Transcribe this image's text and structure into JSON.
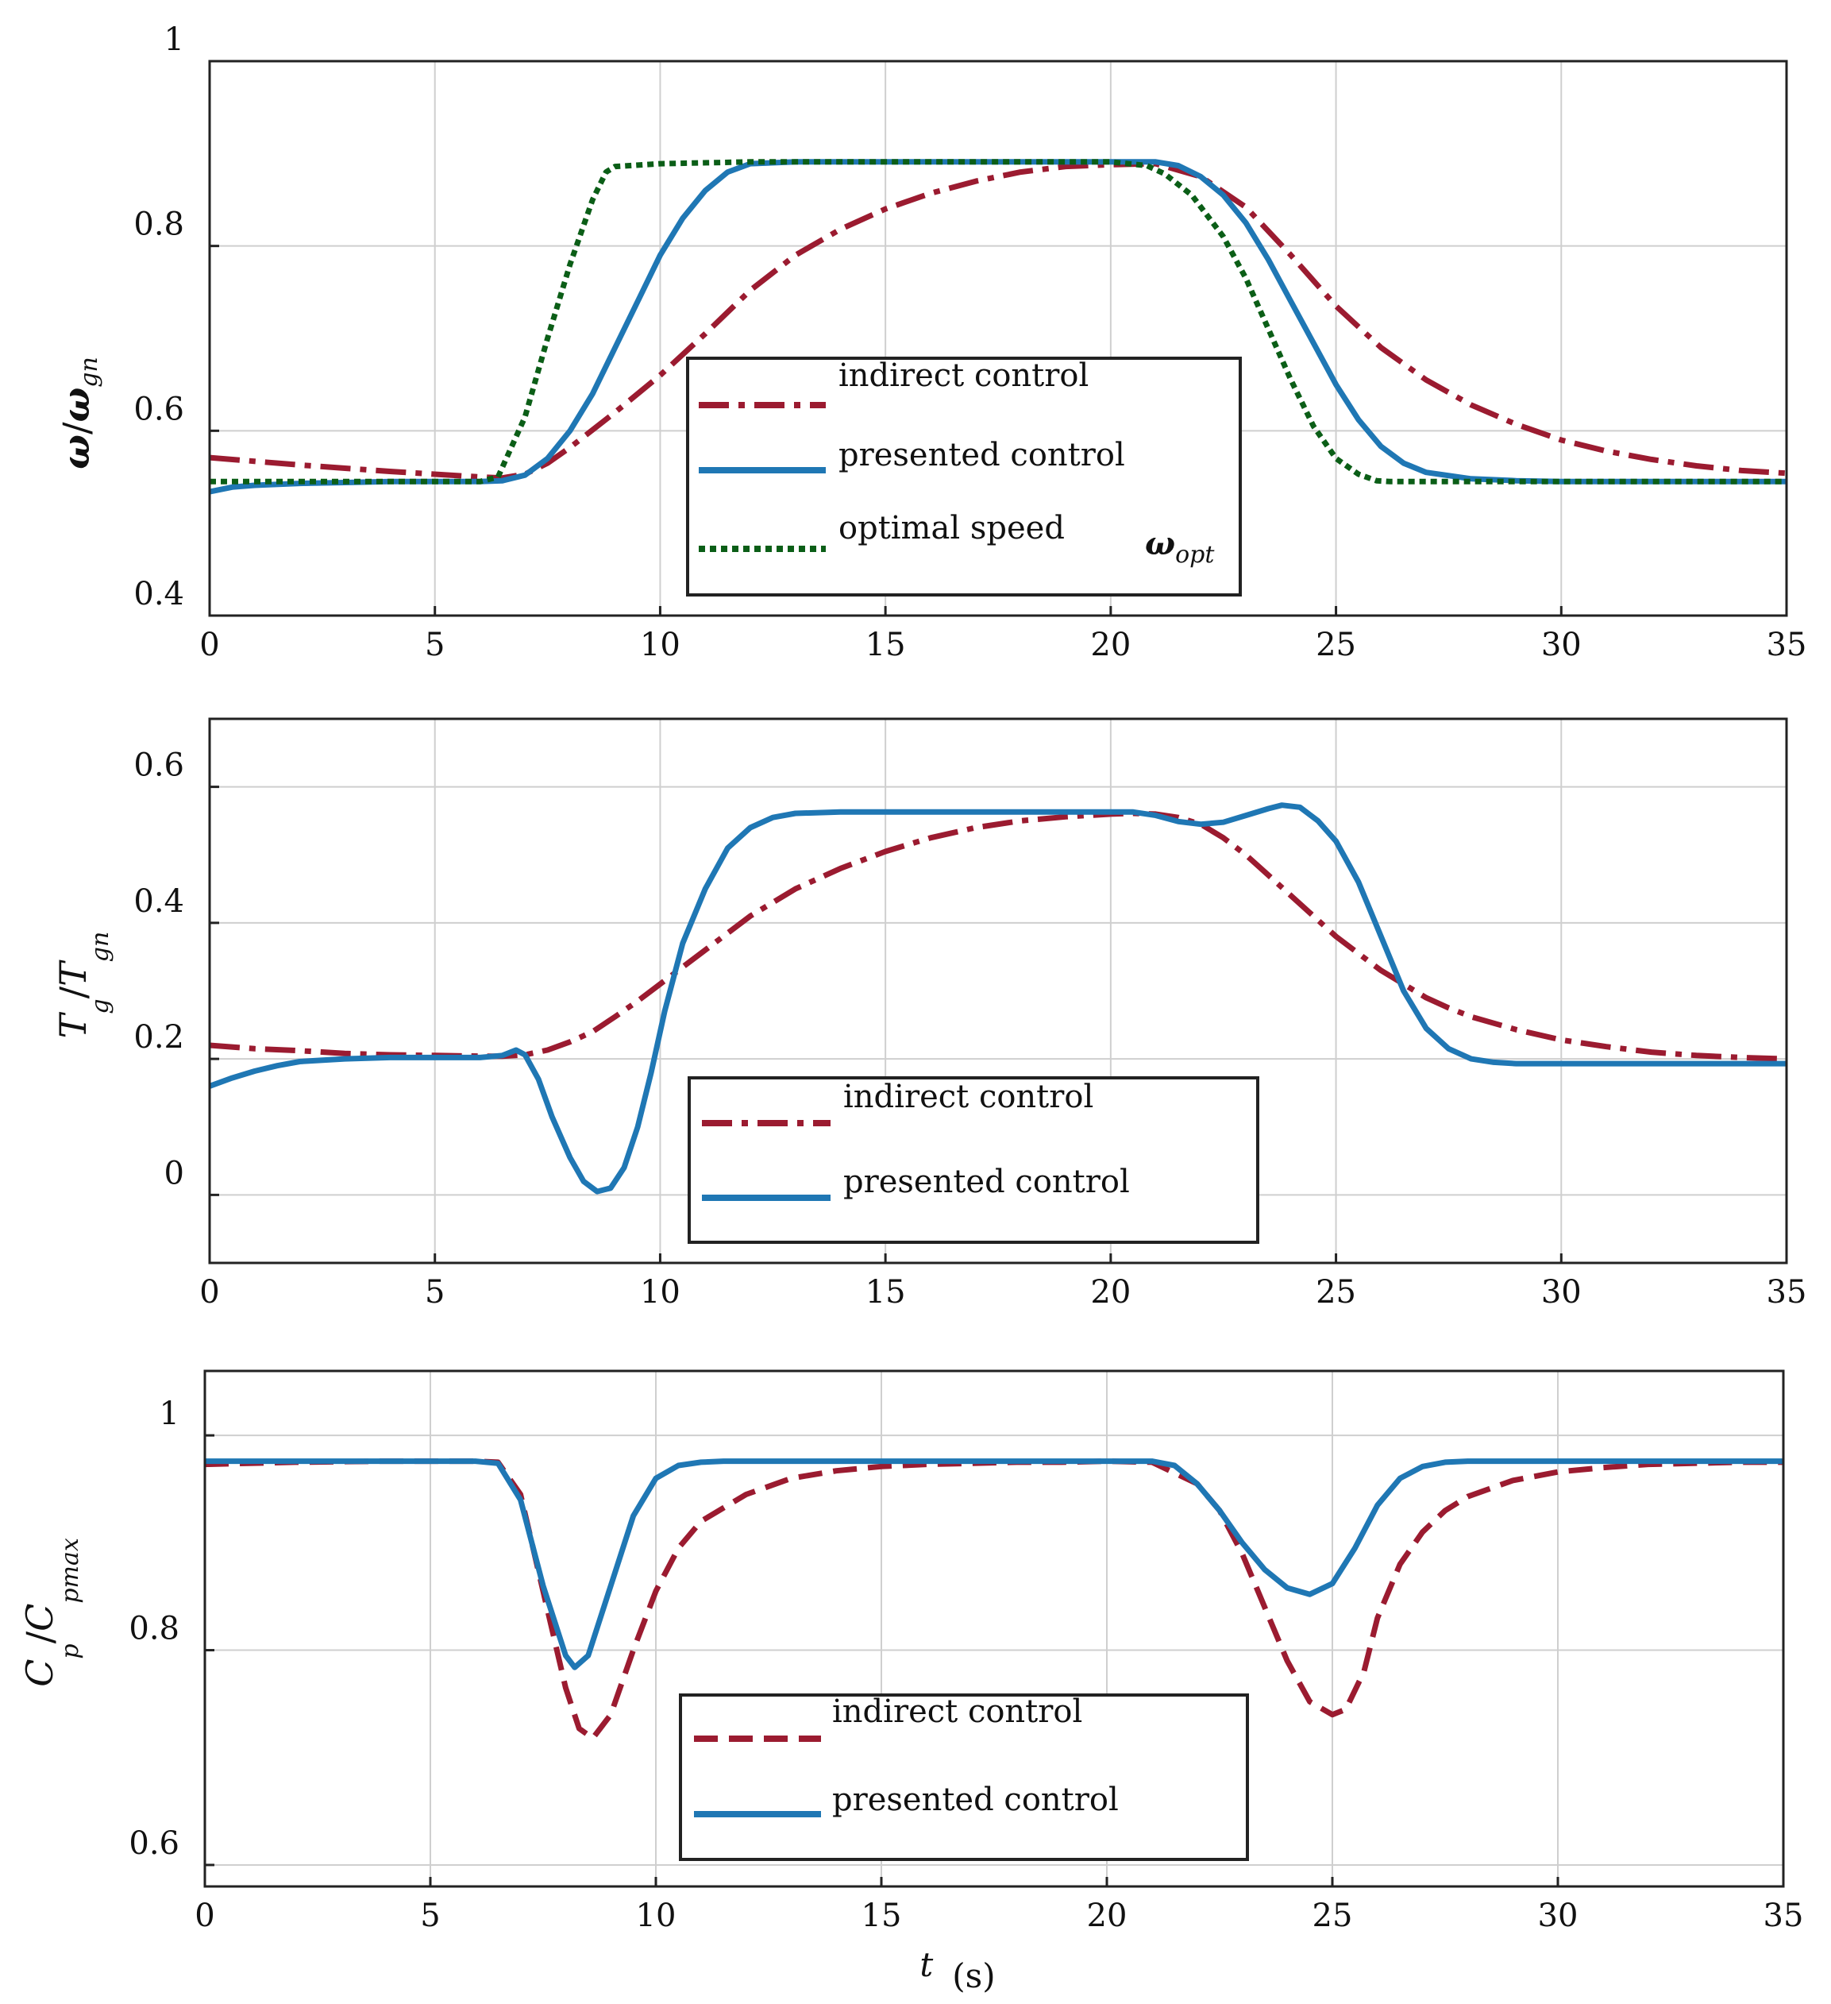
{
  "colors": {
    "indirect": "#9b1b30",
    "presented": "#1f77b4",
    "optimal": "#0b5e17",
    "grid": "#cfcfcf",
    "axis": "#222222"
  },
  "shared_x": {
    "label": "t",
    "unit": "(s)",
    "xlim": [
      0,
      35
    ],
    "ticks": [
      0,
      5,
      10,
      15,
      20,
      25,
      30,
      35
    ]
  },
  "chart_data": [
    {
      "id": "speed",
      "type": "line",
      "ylabel": "ω/ω_gn",
      "ylabel_parts": {
        "main": "ω",
        "sep": "/",
        "denom": "ω",
        "sub": "gn"
      },
      "ylim": [
        0.4,
        1.0
      ],
      "yticks": [
        0.4,
        0.6,
        0.8,
        1
      ],
      "ytick_labels": [
        "0.4",
        "0.6",
        "0.8",
        "1"
      ],
      "annotation": {
        "main": "ω",
        "sub": "opt"
      },
      "legend": [
        "indirect control",
        "presented control",
        "optimal speed"
      ],
      "series": [
        {
          "name": "indirect control",
          "style": "dashdot",
          "color_key": "indirect",
          "x": [
            0,
            2,
            4,
            6,
            6.5,
            7,
            7.5,
            8,
            9,
            10,
            11,
            12,
            13,
            14,
            15,
            16,
            17,
            18,
            19,
            20,
            21,
            22,
            23,
            24,
            25,
            26,
            27,
            28,
            29,
            30,
            31,
            32,
            33,
            34,
            35
          ],
          "y": [
            0.571,
            0.563,
            0.556,
            0.55,
            0.549,
            0.553,
            0.565,
            0.582,
            0.62,
            0.66,
            0.705,
            0.752,
            0.79,
            0.818,
            0.84,
            0.857,
            0.87,
            0.88,
            0.886,
            0.888,
            0.889,
            0.875,
            0.842,
            0.79,
            0.735,
            0.69,
            0.655,
            0.628,
            0.607,
            0.59,
            0.578,
            0.569,
            0.562,
            0.557,
            0.554
          ]
        },
        {
          "name": "presented control",
          "style": "solid",
          "color_key": "presented",
          "x": [
            0,
            0.5,
            1,
            2,
            3,
            4,
            5,
            6,
            6.5,
            7,
            7.5,
            8,
            8.5,
            9,
            9.5,
            10,
            10.5,
            11,
            11.5,
            12,
            13,
            14,
            15,
            16,
            17,
            18,
            19,
            20,
            21,
            21.5,
            22,
            22.5,
            23,
            23.5,
            24,
            24.5,
            25,
            25.5,
            26,
            26.5,
            27,
            28,
            29,
            30,
            31,
            32,
            33,
            34,
            35
          ],
          "y": [
            0.534,
            0.539,
            0.541,
            0.543,
            0.544,
            0.545,
            0.545,
            0.545,
            0.546,
            0.552,
            0.57,
            0.6,
            0.64,
            0.69,
            0.74,
            0.79,
            0.83,
            0.86,
            0.88,
            0.889,
            0.891,
            0.891,
            0.891,
            0.891,
            0.891,
            0.891,
            0.891,
            0.891,
            0.891,
            0.887,
            0.875,
            0.855,
            0.825,
            0.785,
            0.74,
            0.695,
            0.65,
            0.612,
            0.583,
            0.565,
            0.555,
            0.548,
            0.546,
            0.545,
            0.545,
            0.545,
            0.545,
            0.545,
            0.545
          ]
        },
        {
          "name": "optimal speed",
          "style": "dotted",
          "color_key": "optimal",
          "x": [
            0,
            6,
            6.4,
            7,
            7.5,
            8,
            8.5,
            8.8,
            9,
            10,
            12,
            14,
            16,
            18,
            20,
            20.8,
            21.2,
            21.8,
            22.5,
            23,
            23.5,
            24,
            24.5,
            25,
            25.5,
            25.9,
            26.2,
            28,
            30,
            35
          ],
          "y": [
            0.545,
            0.545,
            0.55,
            0.615,
            0.7,
            0.78,
            0.85,
            0.88,
            0.886,
            0.889,
            0.891,
            0.891,
            0.891,
            0.891,
            0.891,
            0.887,
            0.878,
            0.855,
            0.81,
            0.765,
            0.71,
            0.655,
            0.605,
            0.57,
            0.553,
            0.546,
            0.545,
            0.545,
            0.545,
            0.545
          ]
        }
      ]
    },
    {
      "id": "torque",
      "type": "line",
      "ylabel": "T_g/T_gn",
      "ylabel_parts": {
        "a": "T",
        "a_sub": "g",
        "sep": "/",
        "b": "T",
        "b_sub": "gn"
      },
      "ylim": [
        -0.1,
        0.7
      ],
      "yticks": [
        0,
        0.2,
        0.4,
        0.6
      ],
      "ytick_labels": [
        "0",
        "0.2",
        "0.4",
        "0.6"
      ],
      "legend": [
        "indirect control",
        "presented control"
      ],
      "series": [
        {
          "name": "indirect control",
          "style": "dashdot",
          "color_key": "indirect",
          "x": [
            0,
            1,
            2,
            3,
            4,
            5,
            6,
            6.5,
            7,
            7.5,
            8,
            8.5,
            9,
            9.5,
            10,
            10.5,
            11,
            11.5,
            12,
            13,
            14,
            15,
            16,
            17,
            18,
            19,
            20,
            20.5,
            21,
            21.5,
            22,
            22.5,
            23,
            23.5,
            24,
            24.5,
            25,
            25.5,
            26,
            26.5,
            27,
            27.5,
            28,
            29,
            30,
            31,
            32,
            33,
            34,
            35
          ],
          "y": [
            0.22,
            0.215,
            0.212,
            0.208,
            0.206,
            0.205,
            0.204,
            0.204,
            0.206,
            0.213,
            0.225,
            0.24,
            0.262,
            0.285,
            0.31,
            0.335,
            0.36,
            0.385,
            0.41,
            0.45,
            0.48,
            0.505,
            0.525,
            0.54,
            0.55,
            0.556,
            0.56,
            0.561,
            0.56,
            0.555,
            0.545,
            0.525,
            0.5,
            0.47,
            0.44,
            0.41,
            0.38,
            0.355,
            0.33,
            0.31,
            0.29,
            0.275,
            0.262,
            0.243,
            0.228,
            0.218,
            0.21,
            0.205,
            0.202,
            0.2
          ]
        },
        {
          "name": "presented control",
          "style": "solid",
          "color_key": "presented",
          "x": [
            0,
            0.5,
            1,
            1.5,
            2,
            3,
            4,
            5,
            6,
            6.5,
            6.8,
            7,
            7.3,
            7.6,
            8,
            8.3,
            8.6,
            8.9,
            9.2,
            9.5,
            9.8,
            10.1,
            10.5,
            11,
            11.5,
            12,
            12.5,
            13,
            14,
            15,
            16,
            17,
            18,
            19,
            20,
            20.5,
            21,
            21.5,
            22,
            22.5,
            23,
            23.5,
            23.8,
            24.2,
            24.6,
            25,
            25.5,
            26,
            26.5,
            27,
            27.5,
            28,
            28.5,
            29,
            30,
            31,
            32,
            33,
            34,
            35
          ],
          "y": [
            0.16,
            0.172,
            0.182,
            0.19,
            0.196,
            0.2,
            0.202,
            0.202,
            0.202,
            0.205,
            0.213,
            0.206,
            0.17,
            0.115,
            0.055,
            0.02,
            0.005,
            0.01,
            0.04,
            0.1,
            0.18,
            0.27,
            0.37,
            0.45,
            0.51,
            0.54,
            0.555,
            0.561,
            0.563,
            0.563,
            0.563,
            0.563,
            0.563,
            0.563,
            0.563,
            0.563,
            0.558,
            0.549,
            0.545,
            0.548,
            0.558,
            0.568,
            0.573,
            0.57,
            0.55,
            0.52,
            0.46,
            0.38,
            0.3,
            0.245,
            0.215,
            0.2,
            0.195,
            0.193,
            0.193,
            0.193,
            0.193,
            0.193,
            0.193,
            0.193
          ]
        }
      ]
    },
    {
      "id": "cp",
      "type": "line",
      "ylabel": "C_p/C_pmax",
      "ylabel_parts": {
        "a": "C",
        "a_sub": "p",
        "sep": "/",
        "b": "C",
        "b_sub": "pmax"
      },
      "xlabel": "t (s)",
      "ylim": [
        0.58,
        1.06
      ],
      "yticks": [
        0.6,
        0.8,
        1
      ],
      "ytick_labels": [
        "0.6",
        "0.8",
        "1"
      ],
      "legend": [
        "indirect control",
        "presented control"
      ],
      "series": [
        {
          "name": "indirect control",
          "style": "dashed",
          "color_key": "indirect",
          "x": [
            0,
            2,
            4,
            6,
            6.5,
            7,
            7.5,
            8,
            8.3,
            8.6,
            9,
            9.5,
            10,
            10.5,
            11,
            12,
            13,
            14,
            15,
            16,
            17,
            18,
            19,
            20,
            21,
            22,
            22.5,
            23,
            23.5,
            24,
            24.5,
            25,
            25.3,
            25.7,
            26,
            26.5,
            27,
            27.5,
            28,
            29,
            30,
            31,
            32,
            33,
            34,
            35
          ],
          "y": [
            0.973,
            0.975,
            0.976,
            0.976,
            0.975,
            0.945,
            0.855,
            0.765,
            0.727,
            0.718,
            0.74,
            0.8,
            0.855,
            0.895,
            0.92,
            0.945,
            0.96,
            0.967,
            0.971,
            0.973,
            0.974,
            0.975,
            0.975,
            0.976,
            0.975,
            0.955,
            0.93,
            0.89,
            0.84,
            0.79,
            0.752,
            0.74,
            0.745,
            0.78,
            0.83,
            0.88,
            0.91,
            0.93,
            0.943,
            0.958,
            0.966,
            0.97,
            0.973,
            0.974,
            0.975,
            0.975
          ]
        },
        {
          "name": "presented control",
          "style": "solid",
          "color_key": "presented",
          "x": [
            0,
            2,
            4,
            6,
            6.5,
            7,
            7.5,
            8,
            8.2,
            8.5,
            9,
            9.5,
            10,
            10.5,
            11,
            11.5,
            12,
            14,
            16,
            18,
            20,
            21,
            21.5,
            22,
            22.5,
            23,
            23.5,
            24,
            24.5,
            25,
            25.5,
            26,
            26.5,
            27,
            27.5,
            28,
            30,
            32,
            35
          ],
          "y": [
            0.976,
            0.976,
            0.976,
            0.976,
            0.974,
            0.94,
            0.86,
            0.795,
            0.784,
            0.795,
            0.86,
            0.925,
            0.96,
            0.972,
            0.975,
            0.976,
            0.976,
            0.976,
            0.976,
            0.976,
            0.976,
            0.976,
            0.972,
            0.955,
            0.93,
            0.9,
            0.875,
            0.858,
            0.852,
            0.862,
            0.895,
            0.935,
            0.96,
            0.971,
            0.975,
            0.976,
            0.976,
            0.976,
            0.976
          ]
        }
      ]
    }
  ]
}
